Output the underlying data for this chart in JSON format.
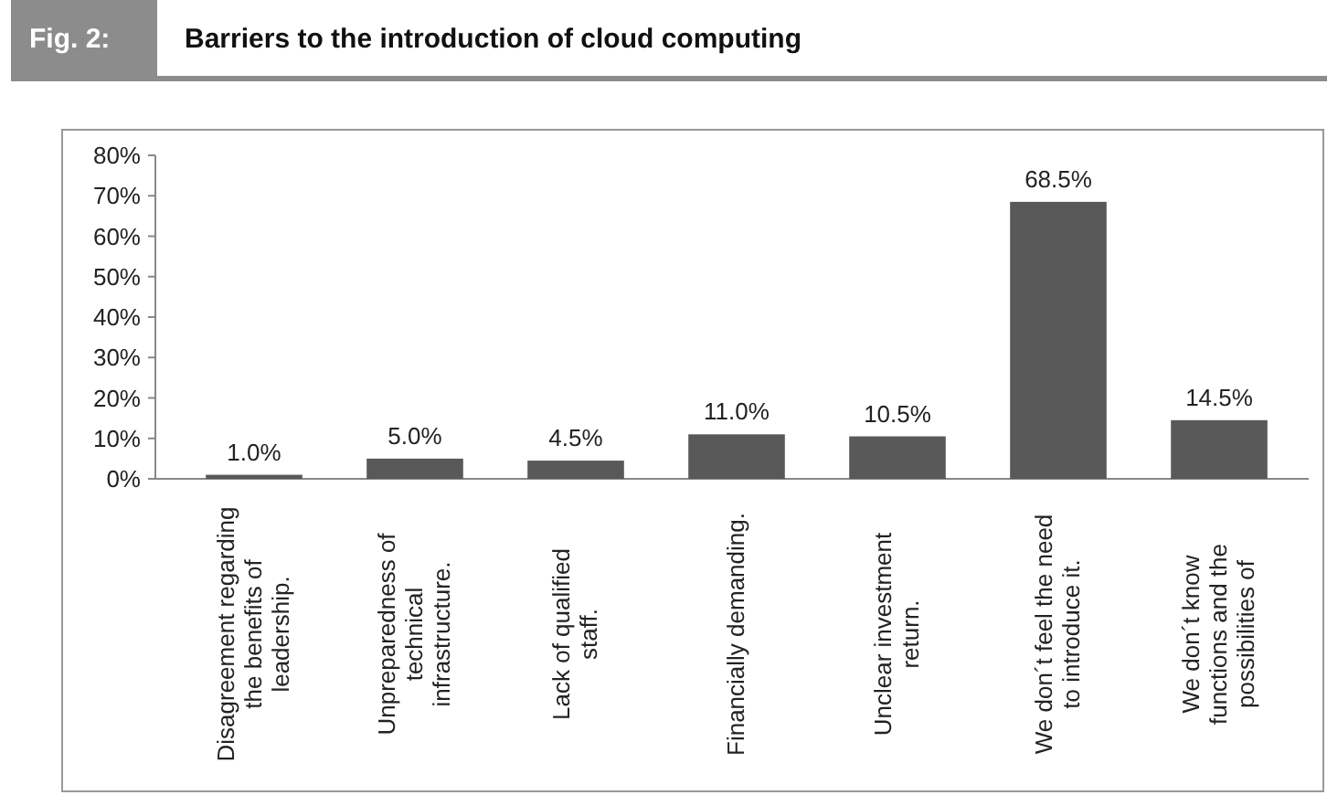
{
  "chart_data": {
    "type": "bar",
    "title": "Barriers to the introduction of cloud computing",
    "annotations": [
      "Fig. 2:"
    ],
    "categories": [
      "Disagreement regarding the benefits of leadership.",
      "Unpreparedness of technical infrastructure.",
      "Lack of qualified staff.",
      "Financially demanding.",
      "Unclear investment return.",
      "We don´t feel the need to introduce it.",
      "We don´t know functions and the possibilities of"
    ],
    "values": [
      1.0,
      5.0,
      4.5,
      11.0,
      10.5,
      68.5,
      14.5
    ],
    "value_labels": [
      "1.0%",
      "5.0%",
      "4.5%",
      "11.0%",
      "10.5%",
      "68.5%",
      "14.5%"
    ],
    "color": "#595959",
    "ylim": [
      0,
      80
    ],
    "yticks": [
      {
        "value": 0,
        "label": "0%"
      },
      {
        "value": 10,
        "label": "10%"
      },
      {
        "value": 20,
        "label": "20%"
      },
      {
        "value": 30,
        "label": "30%"
      },
      {
        "value": 40,
        "label": "40%"
      },
      {
        "value": 50,
        "label": "50%"
      },
      {
        "value": 60,
        "label": "60%"
      },
      {
        "value": 70,
        "label": "70%"
      },
      {
        "value": 80,
        "label": "80%"
      }
    ],
    "grid": false
  }
}
